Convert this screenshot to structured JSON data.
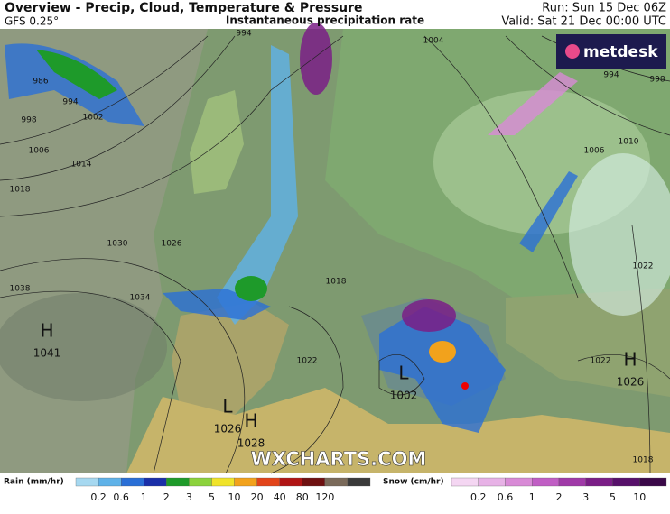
{
  "header": {
    "title": "Overview - Precip, Cloud, Temperature & Pressure",
    "model": "GFS 0.25°",
    "subtitle": "Instantaneous precipitation rate",
    "run": "Run: Sun 15 Dec 06Z",
    "valid": "Valid: Sat 21 Dec 00:00 UTC"
  },
  "logo": "metdesk",
  "watermark": "WXCHARTS.COM",
  "pressure_centers": [
    {
      "type": "H",
      "value": "1041"
    },
    {
      "type": "L",
      "value": "1026"
    },
    {
      "type": "H",
      "value": "1028"
    },
    {
      "type": "L",
      "value": "1002"
    },
    {
      "type": "H",
      "value": "1026"
    }
  ],
  "isobar_labels": [
    "994",
    "986",
    "994",
    "998",
    "1002",
    "1006",
    "1014",
    "1018",
    "1030",
    "1026",
    "1034",
    "1038",
    "1022",
    "1018",
    "1004",
    "994",
    "998",
    "1006",
    "1010",
    "1022",
    "1022",
    "1018"
  ],
  "legend": {
    "rain": {
      "title": "Rain (mm/hr)",
      "labels": [
        "0.2",
        "0.6",
        "1",
        "2",
        "3",
        "5",
        "10",
        "20",
        "40",
        "80",
        "120"
      ],
      "colors": [
        "#a6d8f0",
        "#5fb2e8",
        "#2a6fd6",
        "#1a2fa8",
        "#1e9a2a",
        "#8cd23c",
        "#f0e32a",
        "#f2a21c",
        "#e2441a",
        "#b01414",
        "#6e1010",
        "#7a6a5a",
        "#3a3a3a"
      ]
    },
    "snow": {
      "title": "Snow (cm/hr)",
      "labels": [
        "0.2",
        "0.6",
        "1",
        "2",
        "3",
        "5",
        "10"
      ],
      "colors": [
        "#f4d6f2",
        "#e7b2e6",
        "#d88ad6",
        "#c05ec4",
        "#a03aa8",
        "#7a1e86",
        "#57106a",
        "#3a0848"
      ]
    }
  }
}
